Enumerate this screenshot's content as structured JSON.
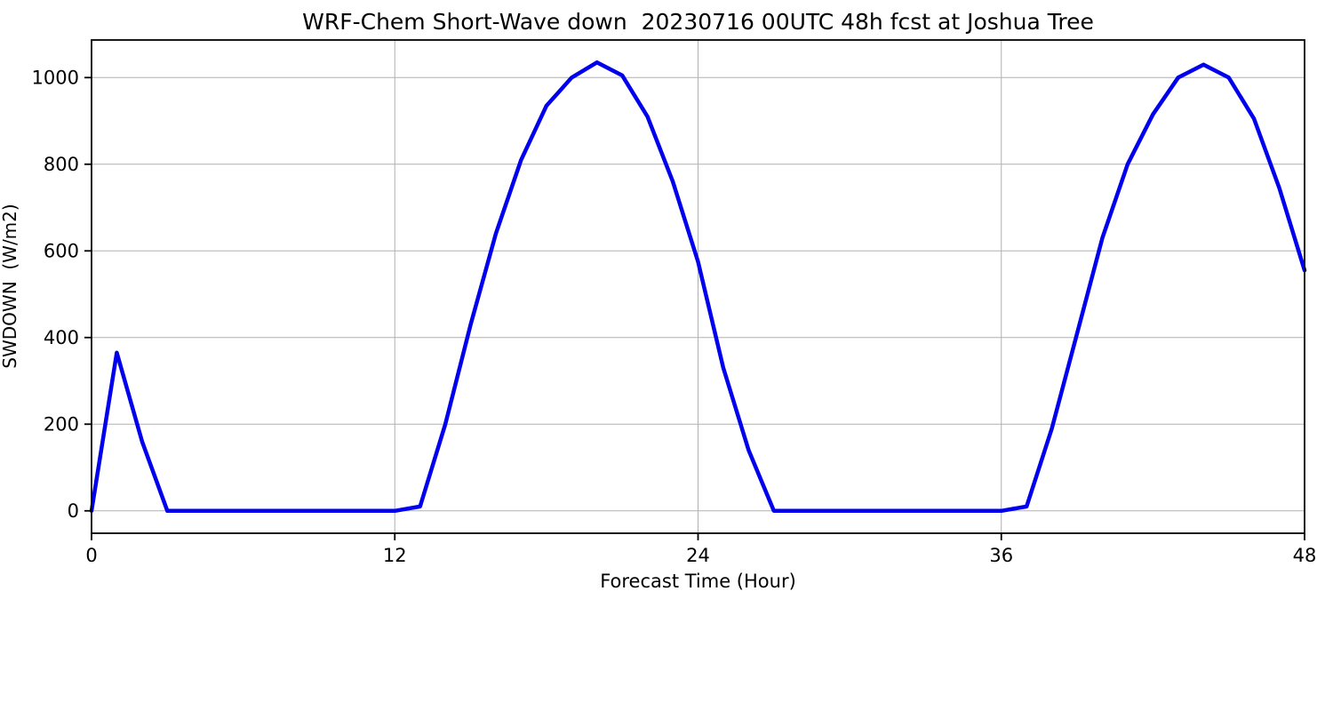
{
  "chart_data": {
    "type": "line",
    "title": "WRF-Chem Short-Wave down  20230716 00UTC 48h fcst at Joshua Tree",
    "xlabel": "Forecast Time (Hour)",
    "ylabel": "SWDOWN  (W/m2)",
    "x": [
      0,
      1,
      2,
      3,
      4,
      5,
      6,
      7,
      8,
      9,
      10,
      11,
      12,
      13,
      14,
      15,
      16,
      17,
      18,
      19,
      20,
      21,
      22,
      23,
      24,
      25,
      26,
      27,
      28,
      29,
      30,
      31,
      32,
      33,
      34,
      35,
      36,
      37,
      38,
      39,
      40,
      41,
      42,
      43,
      44,
      45,
      46,
      47,
      48
    ],
    "y": [
      0,
      365,
      160,
      0,
      0,
      0,
      0,
      0,
      0,
      0,
      0,
      0,
      0,
      10,
      200,
      430,
      640,
      810,
      935,
      1000,
      1035,
      1005,
      910,
      760,
      575,
      330,
      140,
      0,
      0,
      0,
      0,
      0,
      0,
      0,
      0,
      0,
      0,
      10,
      190,
      410,
      630,
      800,
      915,
      1000,
      1030,
      1000,
      905,
      745,
      555
    ],
    "xticks": [
      0,
      12,
      24,
      36,
      48
    ],
    "yticks": [
      0,
      200,
      400,
      600,
      800,
      1000
    ],
    "xlim": [
      0,
      48
    ],
    "ylim": [
      -51.75,
      1086.75
    ],
    "grid": true,
    "legend": "none",
    "series_name": "SWDOWN",
    "colors": {
      "line": "#0000ee",
      "grid": "#b0b0b0",
      "axis": "#000000",
      "background": "#ffffff"
    }
  }
}
